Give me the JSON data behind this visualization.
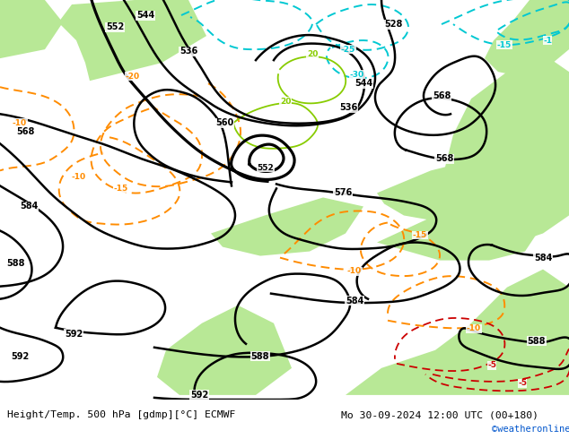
{
  "title_left": "Height/Temp. 500 hPa [gdmp][°C] ECMWF",
  "title_right": "Mo 30-09-2024 12:00 UTC (00+180)",
  "credit": "©weatheronline.co.uk",
  "bg_color": "#c8c8c8",
  "green_color": "#b8e896",
  "white_color": "#ffffff",
  "figsize": [
    6.34,
    4.9
  ],
  "dpi": 100
}
